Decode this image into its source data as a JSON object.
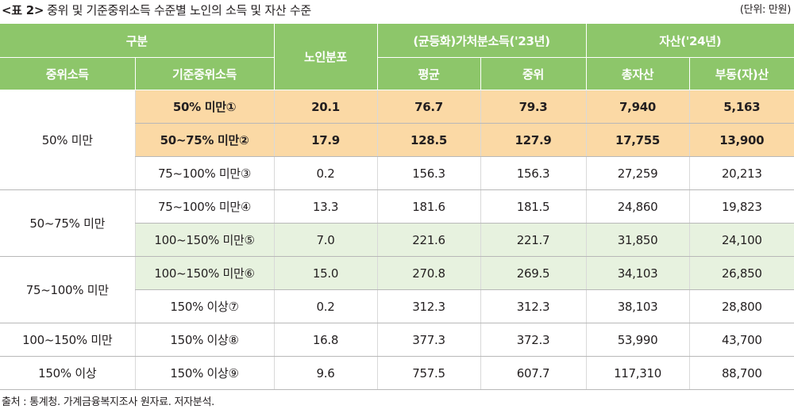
{
  "caption": {
    "label": "<표 2>",
    "text": "중위 및 기준중위소득 수준별 노인의 소득 및 자산 수준"
  },
  "unit": "(단위: 만원)",
  "header": {
    "group_gubun": "구분",
    "col_elderly": "노인분포",
    "group_income": "(균등화)가처분소득('23년)",
    "group_asset": "자산('24년)",
    "col_median_income": "중위소득",
    "col_standard_median": "기준중위소득",
    "col_mean": "평균",
    "col_median": "중위",
    "col_total_asset": "총자산",
    "col_real_estate": "부동(자)산"
  },
  "groups": [
    "50% 미만",
    "50~75% 미만",
    "75~100% 미만",
    "100~150% 미만",
    "150% 이상"
  ],
  "rows": [
    {
      "std": "50% 미만①",
      "dist": "20.1",
      "mean": "76.7",
      "median": "79.3",
      "total": "7,940",
      "realestate": "5,163"
    },
    {
      "std": "50~75% 미만②",
      "dist": "17.9",
      "mean": "128.5",
      "median": "127.9",
      "total": "17,755",
      "realestate": "13,900"
    },
    {
      "std": "75~100% 미만③",
      "dist": "0.2",
      "mean": "156.3",
      "median": "156.3",
      "total": "27,259",
      "realestate": "20,213"
    },
    {
      "std": "75~100% 미만④",
      "dist": "13.3",
      "mean": "181.6",
      "median": "181.5",
      "total": "24,860",
      "realestate": "19,823"
    },
    {
      "std": "100~150% 미만⑤",
      "dist": "7.0",
      "mean": "221.6",
      "median": "221.7",
      "total": "31,850",
      "realestate": "24,100"
    },
    {
      "std": "100~150% 미만⑥",
      "dist": "15.0",
      "mean": "270.8",
      "median": "269.5",
      "total": "34,103",
      "realestate": "26,850"
    },
    {
      "std": "150% 이상⑦",
      "dist": "0.2",
      "mean": "312.3",
      "median": "312.3",
      "total": "38,103",
      "realestate": "28,800"
    },
    {
      "std": "150% 이상⑧",
      "dist": "16.8",
      "mean": "377.3",
      "median": "372.3",
      "total": "53,990",
      "realestate": "43,700"
    },
    {
      "std": "150% 이상⑨",
      "dist": "9.6",
      "mean": "757.5",
      "median": "607.7",
      "total": "117,310",
      "realestate": "88,700"
    }
  ],
  "highlight": {
    "orange": "#fbd9a5",
    "green": "#e7f2df",
    "header": "#8dc66a"
  },
  "source": "출처 :  통계청. 가계금융복지조사 원자료. 저자분석."
}
